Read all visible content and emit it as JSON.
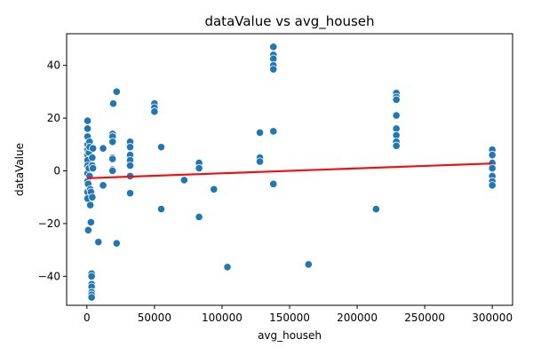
{
  "chart_data": {
    "type": "scatter",
    "title": "dataValue vs avg_househ",
    "xlabel": "avg_househ",
    "ylabel": "dataValue",
    "xlim": [
      -15000,
      315000
    ],
    "ylim": [
      -51,
      52
    ],
    "x_ticks": [
      0,
      50000,
      100000,
      150000,
      200000,
      250000,
      300000
    ],
    "x_tick_labels": [
      "0",
      "50000",
      "100000",
      "150000",
      "200000",
      "250000",
      "300000"
    ],
    "y_ticks": [
      -40,
      -20,
      0,
      20,
      40
    ],
    "y_tick_labels": [
      "−40",
      "−20",
      "0",
      "20",
      "40"
    ],
    "grid": false,
    "point_color": "#1f77b4",
    "trend_color": "#ee1111",
    "trend_line": {
      "x": [
        0,
        300000
      ],
      "y": [
        -2.8,
        2.8
      ]
    },
    "points": [
      {
        "x": 500,
        "y": 19
      },
      {
        "x": 500,
        "y": 16
      },
      {
        "x": 500,
        "y": 13
      },
      {
        "x": 500,
        "y": 10
      },
      {
        "x": 500,
        "y": 8
      },
      {
        "x": 500,
        "y": 6
      },
      {
        "x": 500,
        "y": 4
      },
      {
        "x": 500,
        "y": 2
      },
      {
        "x": 500,
        "y": -1
      },
      {
        "x": 500,
        "y": -4
      },
      {
        "x": 500,
        "y": -8
      },
      {
        "x": 500,
        "y": -10.5
      },
      {
        "x": 1000,
        "y": -22.5
      },
      {
        "x": 1000,
        "y": -5
      },
      {
        "x": 1500,
        "y": 1
      },
      {
        "x": 1500,
        "y": 7
      },
      {
        "x": 2000,
        "y": 11
      },
      {
        "x": 2000,
        "y": 9
      },
      {
        "x": 2000,
        "y": -2
      },
      {
        "x": 2500,
        "y": -13
      },
      {
        "x": 2500,
        "y": -7
      },
      {
        "x": 3000,
        "y": -19.5
      },
      {
        "x": 3000,
        "y": -8
      },
      {
        "x": 3500,
        "y": -39
      },
      {
        "x": 3500,
        "y": -40
      },
      {
        "x": 3500,
        "y": -43
      },
      {
        "x": 3500,
        "y": -44
      },
      {
        "x": 3500,
        "y": -46
      },
      {
        "x": 3500,
        "y": -47
      },
      {
        "x": 3500,
        "y": -48
      },
      {
        "x": 4000,
        "y": 5
      },
      {
        "x": 4000,
        "y": 2
      },
      {
        "x": 4000,
        "y": -10
      },
      {
        "x": 4500,
        "y": 8.5
      },
      {
        "x": 4500,
        "y": 1
      },
      {
        "x": 8500,
        "y": -27
      },
      {
        "x": 12000,
        "y": 8.5
      },
      {
        "x": 12000,
        "y": -5.5
      },
      {
        "x": 19000,
        "y": 14
      },
      {
        "x": 19000,
        "y": 13
      },
      {
        "x": 19000,
        "y": 11
      },
      {
        "x": 19000,
        "y": 5
      },
      {
        "x": 19000,
        "y": 4.5
      },
      {
        "x": 19000,
        "y": 0.5
      },
      {
        "x": 19000,
        "y": 0
      },
      {
        "x": 19500,
        "y": 25.5
      },
      {
        "x": 22000,
        "y": 30
      },
      {
        "x": 22000,
        "y": -27.5
      },
      {
        "x": 32000,
        "y": 11
      },
      {
        "x": 32000,
        "y": 9
      },
      {
        "x": 32000,
        "y": 6
      },
      {
        "x": 32000,
        "y": 4
      },
      {
        "x": 32000,
        "y": 2
      },
      {
        "x": 32000,
        "y": -2
      },
      {
        "x": 32000,
        "y": -8.5
      },
      {
        "x": 50000,
        "y": 25.5
      },
      {
        "x": 50000,
        "y": 24
      },
      {
        "x": 50000,
        "y": 22.5
      },
      {
        "x": 55000,
        "y": 9
      },
      {
        "x": 55000,
        "y": -14.5
      },
      {
        "x": 72000,
        "y": -3.5
      },
      {
        "x": 83000,
        "y": 3
      },
      {
        "x": 83000,
        "y": 1
      },
      {
        "x": 83000,
        "y": -17.5
      },
      {
        "x": 94000,
        "y": -7
      },
      {
        "x": 104000,
        "y": -36.5
      },
      {
        "x": 128000,
        "y": 14.5
      },
      {
        "x": 128000,
        "y": 5
      },
      {
        "x": 128000,
        "y": 3.5
      },
      {
        "x": 138000,
        "y": 47
      },
      {
        "x": 138000,
        "y": 44
      },
      {
        "x": 138000,
        "y": 42.5
      },
      {
        "x": 138000,
        "y": 40
      },
      {
        "x": 138000,
        "y": 38.5
      },
      {
        "x": 138000,
        "y": 15
      },
      {
        "x": 138000,
        "y": -5
      },
      {
        "x": 164000,
        "y": -35.5
      },
      {
        "x": 214000,
        "y": -14.5
      },
      {
        "x": 229000,
        "y": 29.5
      },
      {
        "x": 229000,
        "y": 28
      },
      {
        "x": 229000,
        "y": 27
      },
      {
        "x": 229000,
        "y": 21
      },
      {
        "x": 229000,
        "y": 16
      },
      {
        "x": 229000,
        "y": 13.5
      },
      {
        "x": 229000,
        "y": 11
      },
      {
        "x": 229000,
        "y": 9.5
      },
      {
        "x": 300000,
        "y": 8
      },
      {
        "x": 300000,
        "y": 6
      },
      {
        "x": 300000,
        "y": 3
      },
      {
        "x": 300000,
        "y": 1
      },
      {
        "x": 300000,
        "y": -2
      },
      {
        "x": 300000,
        "y": -4
      },
      {
        "x": 300000,
        "y": -5.5
      }
    ]
  }
}
